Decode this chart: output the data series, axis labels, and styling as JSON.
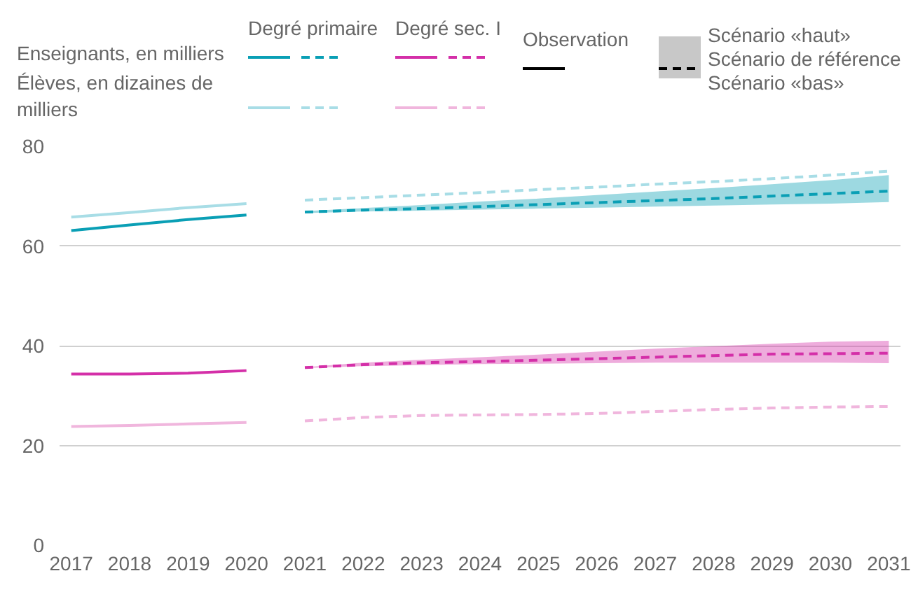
{
  "chart_data": {
    "type": "line",
    "annotations": [
      "Enseignants, en milliers",
      "Élèves, en dizaines de milliers",
      "Degré primaire",
      "Degré sec. I",
      "Observation",
      "Scénario «haut»",
      "Scénario de référence",
      "Scénario «bas»"
    ],
    "xlim": [
      2016.8,
      2031.2
    ],
    "xticks": [
      2017,
      2018,
      2019,
      2020,
      2021,
      2022,
      2023,
      2024,
      2025,
      2026,
      2027,
      2028,
      2029,
      2030,
      2031
    ],
    "ylim": [
      0,
      80
    ],
    "yticks": [
      0,
      20,
      40,
      60,
      80
    ],
    "grid": "y",
    "series": [
      {
        "color": "#0a9fb5",
        "line_style": "solid",
        "x": [
          2017,
          2018,
          2019,
          2020
        ],
        "values": [
          63.1,
          64.2,
          65.3,
          66.2
        ]
      },
      {
        "color": "#0a9fb5",
        "line_style": "dashed",
        "x": [
          2021,
          2022,
          2023,
          2024,
          2025,
          2026,
          2027,
          2028,
          2029,
          2030,
          2031
        ],
        "values": [
          66.8,
          67.2,
          67.5,
          67.9,
          68.3,
          68.7,
          69.1,
          69.5,
          70.0,
          70.5,
          71.0
        ],
        "lower": [
          66.6,
          66.9,
          67.1,
          67.3,
          67.5,
          67.7,
          67.9,
          68.1,
          68.3,
          68.5,
          68.8
        ],
        "upper": [
          67.0,
          67.6,
          68.2,
          68.9,
          69.5,
          70.2,
          70.9,
          71.6,
          72.4,
          73.2,
          74.2
        ]
      },
      {
        "color": "#a8dde6",
        "line_style": "solid",
        "x": [
          2017,
          2018,
          2019,
          2020
        ],
        "values": [
          65.8,
          66.7,
          67.7,
          68.5
        ]
      },
      {
        "color": "#a8dde6",
        "line_style": "dashed",
        "x": [
          2021,
          2022,
          2023,
          2024,
          2025,
          2026,
          2027,
          2028,
          2029,
          2030,
          2031
        ],
        "values": [
          69.2,
          69.7,
          70.2,
          70.7,
          71.3,
          71.8,
          72.4,
          72.9,
          73.5,
          74.2,
          75.0
        ]
      },
      {
        "color": "#d42fa8",
        "line_style": "solid",
        "x": [
          2017,
          2018,
          2019,
          2020
        ],
        "values": [
          34.3,
          34.3,
          34.5,
          35.0
        ]
      },
      {
        "color": "#d42fa8",
        "line_style": "dashed",
        "x": [
          2021,
          2022,
          2023,
          2024,
          2025,
          2026,
          2027,
          2028,
          2029,
          2030,
          2031
        ],
        "values": [
          35.6,
          36.2,
          36.6,
          36.8,
          37.1,
          37.4,
          37.7,
          38.0,
          38.3,
          38.4,
          38.5
        ],
        "lower": [
          35.5,
          35.9,
          36.1,
          36.3,
          36.4,
          36.5,
          36.6,
          36.6,
          36.6,
          36.6,
          36.5
        ],
        "upper": [
          35.7,
          36.6,
          37.2,
          37.7,
          38.2,
          38.8,
          39.4,
          39.9,
          40.4,
          40.8,
          41.0
        ]
      },
      {
        "color": "#f0b6dd",
        "line_style": "solid",
        "x": [
          2017,
          2018,
          2019,
          2020
        ],
        "values": [
          23.8,
          24.0,
          24.3,
          24.6
        ]
      },
      {
        "color": "#f0b6dd",
        "line_style": "dashed",
        "x": [
          2021,
          2022,
          2023,
          2024,
          2025,
          2026,
          2027,
          2028,
          2029,
          2030,
          2031
        ],
        "values": [
          24.9,
          25.6,
          26.0,
          26.1,
          26.2,
          26.4,
          26.8,
          27.2,
          27.5,
          27.7,
          27.8
        ]
      }
    ]
  }
}
